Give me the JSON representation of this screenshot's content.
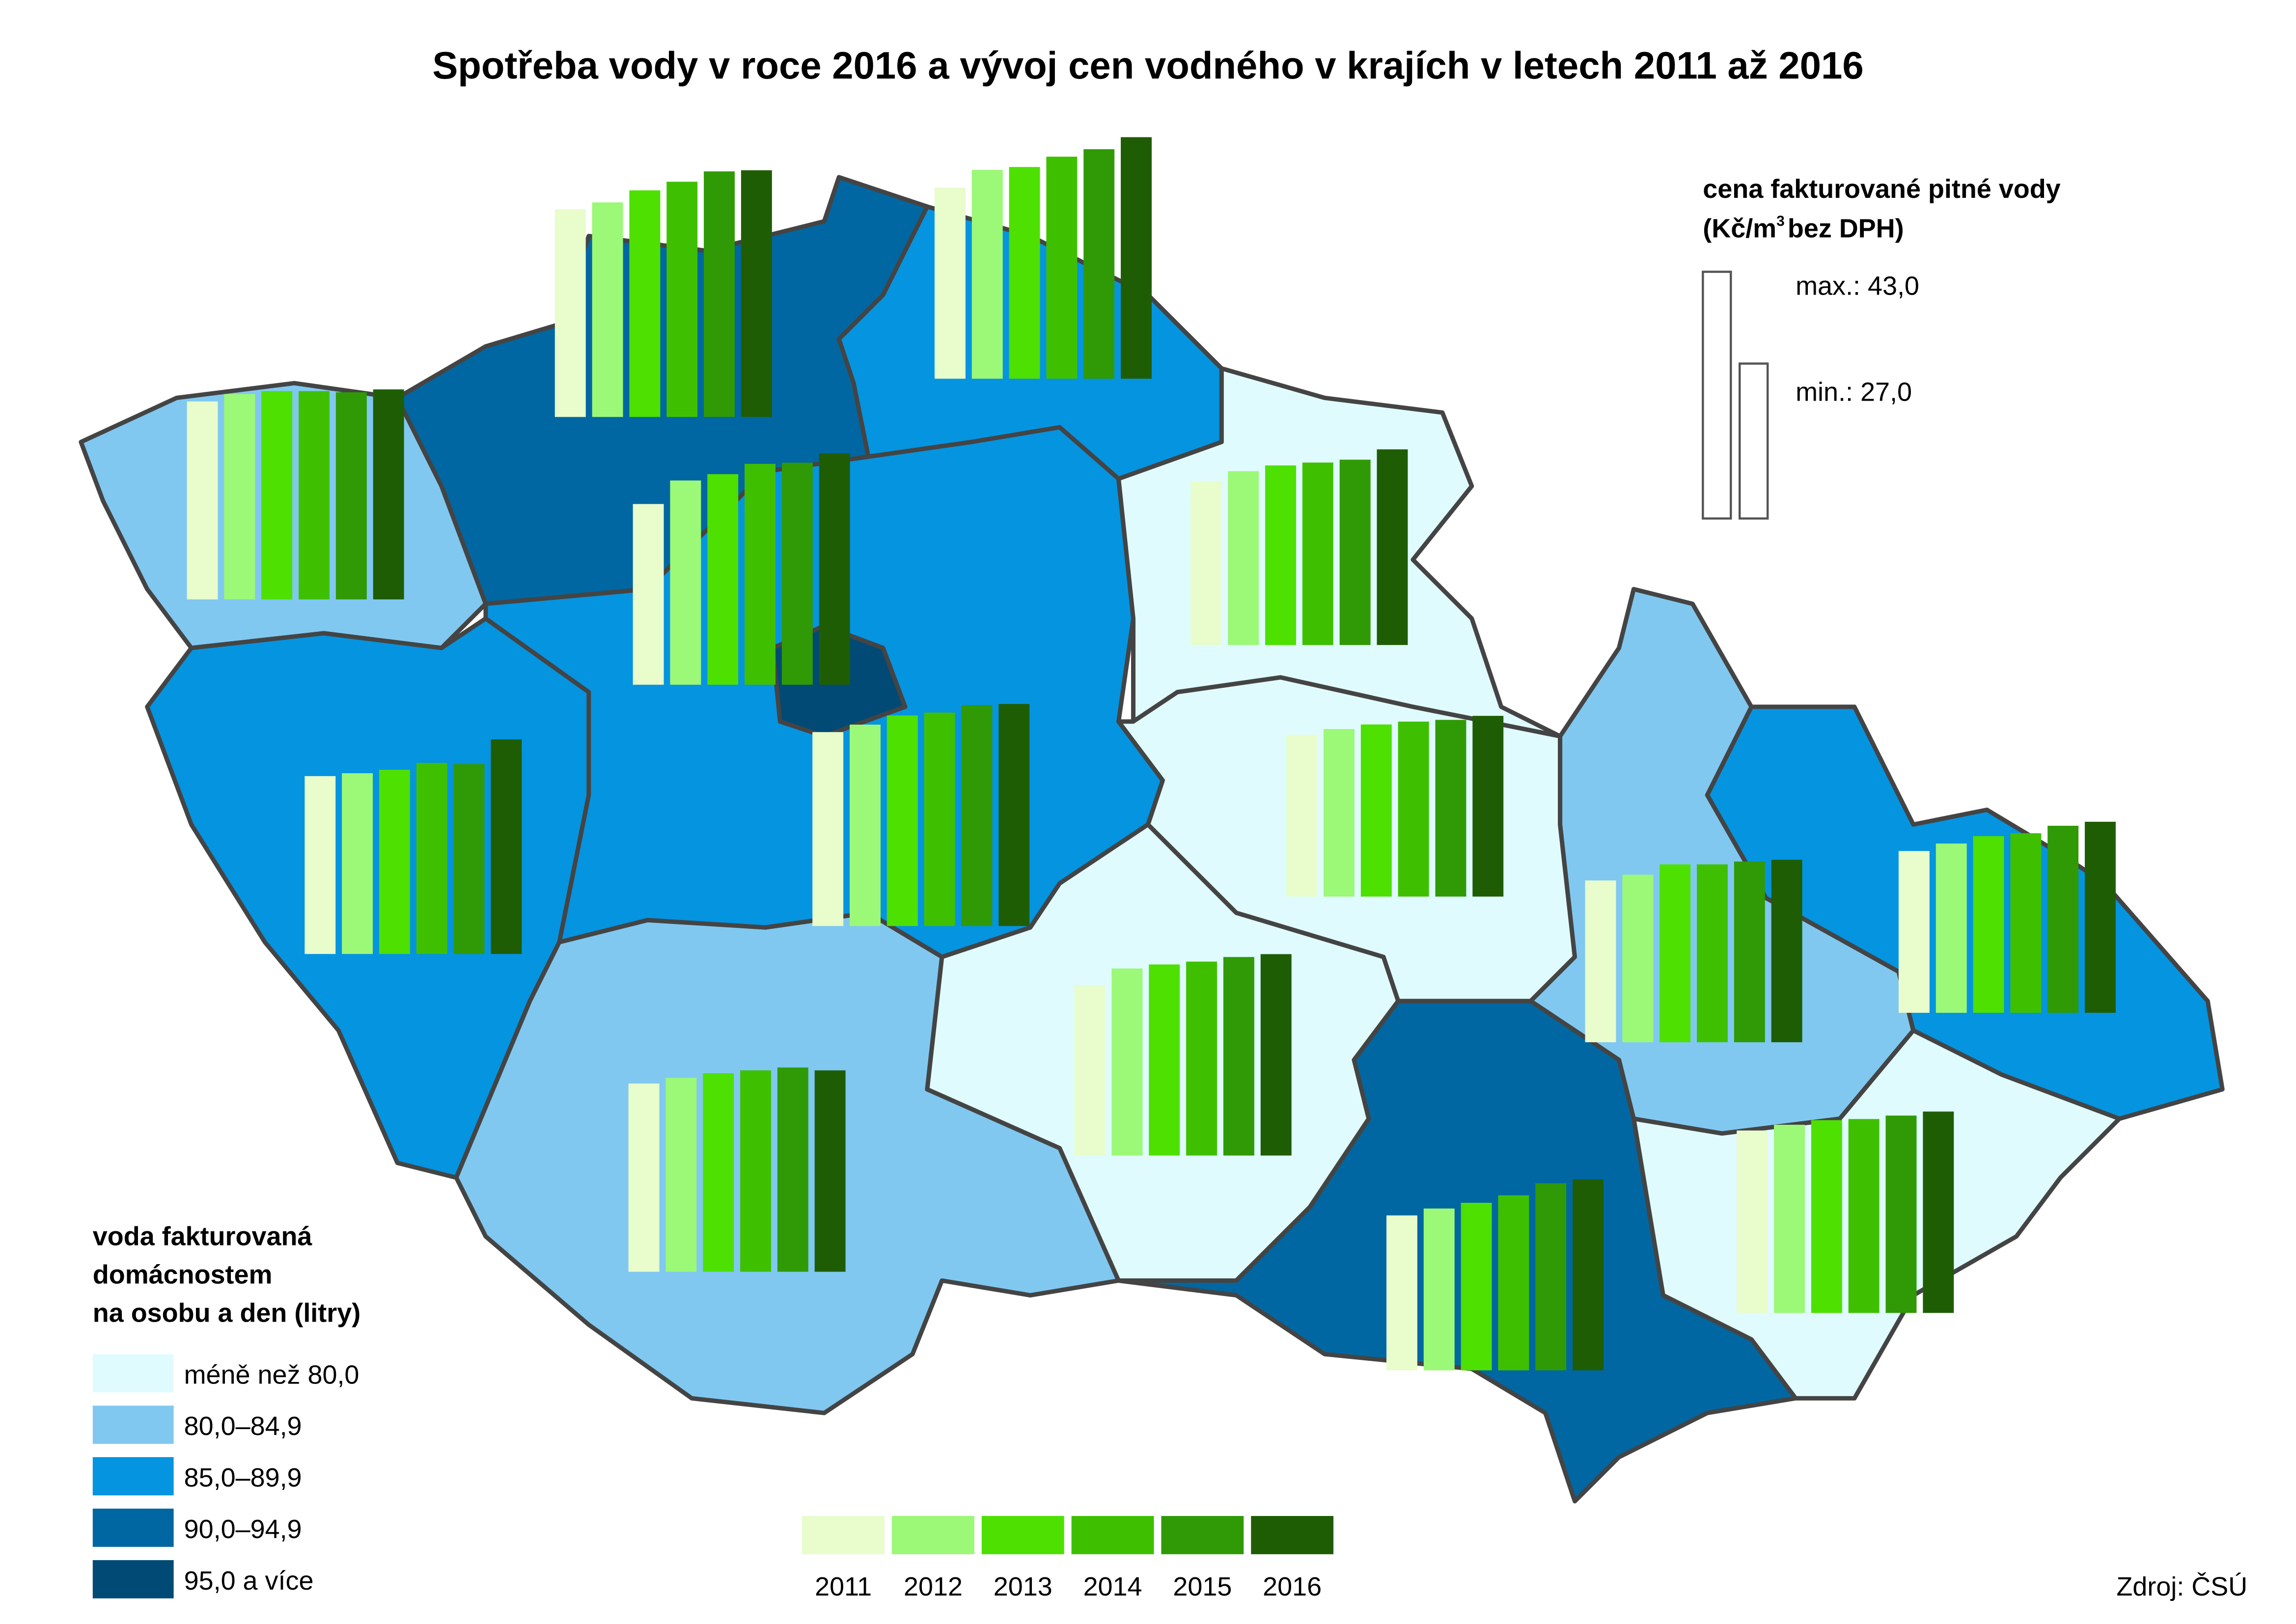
{
  "title": "Spotřeba vody v roce 2016 a vývoj cen vodného v krajích v letech 2011 až 2016",
  "years": [
    "2011",
    "2012",
    "2013",
    "2014",
    "2015",
    "2016"
  ],
  "year_colors": [
    "#e8fccc",
    "#9cf877",
    "#4de000",
    "#3ec000",
    "#2f9a05",
    "#1f5d05"
  ],
  "consumption_legend": {
    "title_lines": [
      "voda fakturovaná",
      "domácnostem",
      "na osobu a den (litry)"
    ],
    "classes": [
      {
        "label": "méně než 80,0",
        "color": "#e0fbfd"
      },
      {
        "label": "80,0–84,9",
        "color": "#80c8f0"
      },
      {
        "label": "85,0–89,9",
        "color": "#0594e0"
      },
      {
        "label": "90,0–94,9",
        "color": "#0067a2"
      },
      {
        "label": "95,0 a více",
        "color": "#004a75"
      }
    ]
  },
  "price_legend": {
    "title_line1": "cena fakturované pitné vody",
    "title_unit_start": "(Kč/m",
    "title_unit_sup": "3",
    "title_unit_end": "bez DPH)",
    "max": {
      "label": "max.:",
      "value": 43.0,
      "value_label": "43,0"
    },
    "min": {
      "label": "min.:",
      "value": 27.0,
      "value_label": "27,0"
    }
  },
  "regions": [
    {
      "color": "#80c8f0",
      "prices": [
        34.5,
        35.8,
        36.3,
        36.3,
        36.1,
        36.6
      ]
    },
    {
      "color": "#0067a2",
      "prices": [
        36.2,
        37.4,
        39.5,
        41.0,
        42.8,
        43.0
      ]
    },
    {
      "color": "#0594e0",
      "prices": [
        33.3,
        36.4,
        36.9,
        38.7,
        40.0,
        42.1
      ]
    },
    {
      "color": "#0594e0",
      "prices": [
        33.8,
        35.1,
        36.7,
        37.2,
        38.5,
        38.7
      ]
    },
    {
      "color": "#004a75",
      "prices": [
        31.5,
        35.6,
        36.7,
        38.5,
        38.7,
        40.3
      ]
    },
    {
      "color": "#0594e0",
      "prices": [
        31.0,
        31.5,
        32.1,
        33.3,
        33.1,
        37.4
      ]
    },
    {
      "color": "#80c8f0",
      "prices": [
        32.8,
        33.8,
        34.6,
        35.1,
        35.6,
        35.1
      ]
    },
    {
      "color": "#e0fbfd",
      "prices": [
        29.7,
        32.6,
        33.3,
        33.8,
        34.6,
        35.1
      ]
    },
    {
      "color": "#e0fbfd",
      "prices": [
        28.5,
        30.3,
        31.3,
        31.8,
        32.3,
        34.1
      ]
    },
    {
      "color": "#e0fbfd",
      "prices": [
        28.2,
        29.2,
        30.0,
        30.5,
        30.8,
        31.5
      ]
    },
    {
      "color": "#80c8f0",
      "prices": [
        28.2,
        29.2,
        31.0,
        31.0,
        31.5,
        31.8
      ]
    },
    {
      "color": "#0594e0",
      "prices": [
        28.2,
        29.5,
        30.8,
        31.3,
        32.6,
        33.3
      ]
    },
    {
      "color": "#e0fbfd",
      "prices": [
        31.8,
        32.8,
        33.6,
        33.8,
        34.4,
        35.1
      ]
    },
    {
      "color": "#0067a2",
      "prices": [
        27.0,
        28.2,
        29.2,
        30.5,
        32.6,
        33.3
      ]
    }
  ],
  "source": "Zdroj: ČSÚ"
}
